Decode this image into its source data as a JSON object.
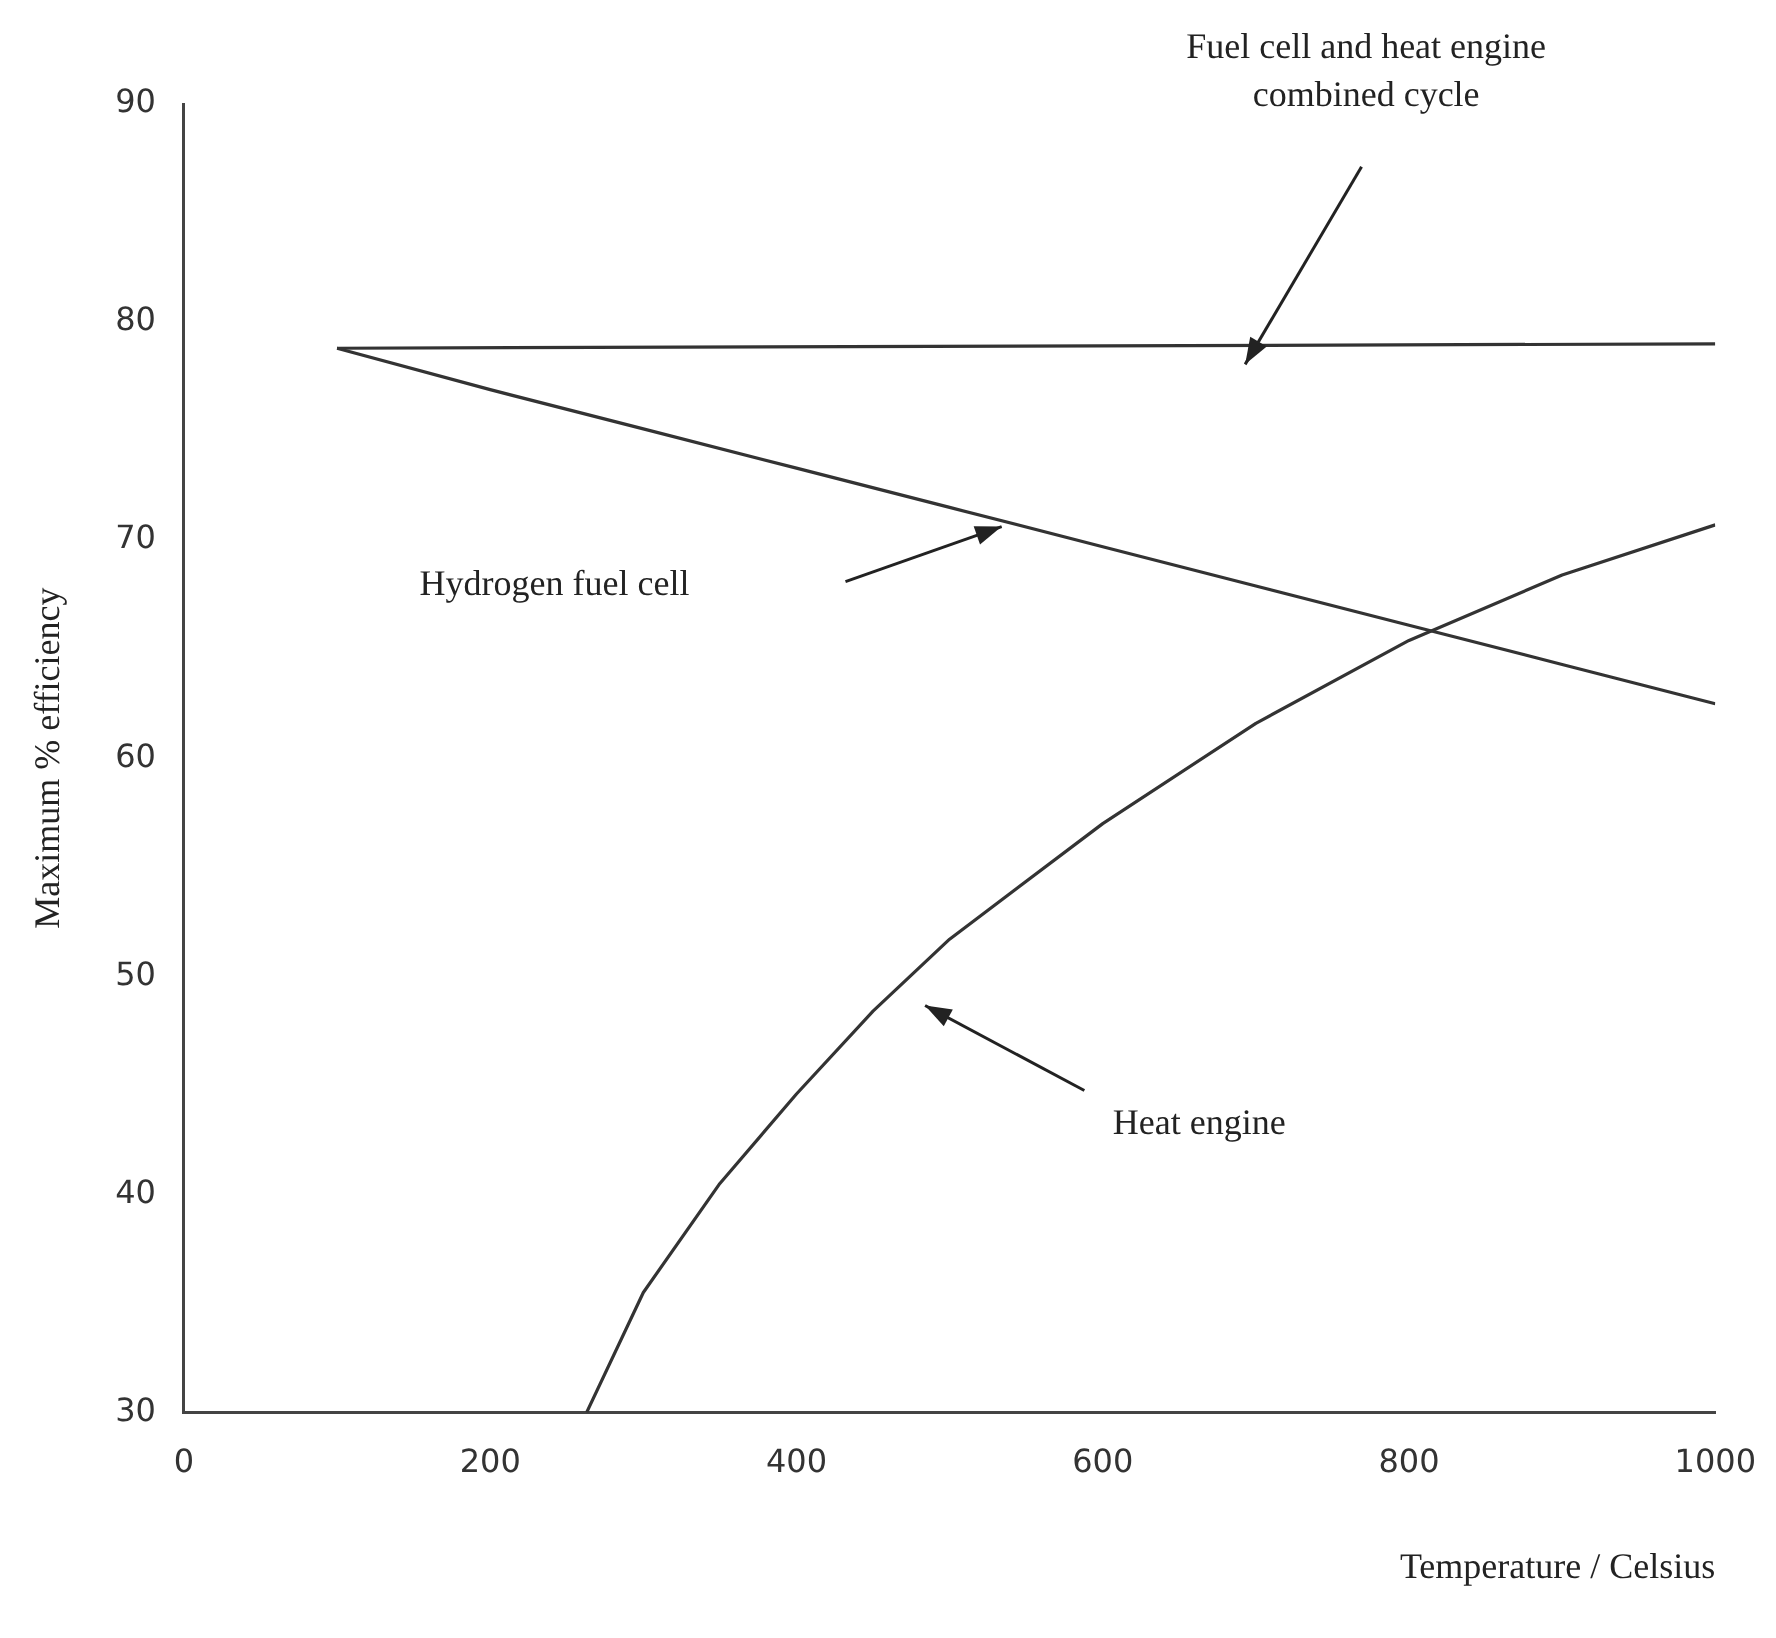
{
  "chart_data": {
    "type": "line",
    "xlabel": "Temperature / Celsius",
    "ylabel": "Maximum % efficiency",
    "xlim": [
      0,
      1000
    ],
    "xticks": [
      0,
      200,
      400,
      600,
      800,
      1000
    ],
    "ylim": [
      30,
      90
    ],
    "yticks": [
      30,
      40,
      50,
      60,
      70,
      80,
      90
    ],
    "grid": false,
    "legend": false,
    "marker": "none",
    "line_style": "solid",
    "series": [
      {
        "color": "#333333",
        "x": [
          100,
          1000
        ],
        "values": [
          78.8,
          79.0
        ]
      },
      {
        "color": "#333333",
        "x": [
          100,
          200,
          300,
          400,
          500,
          600,
          700,
          800,
          900,
          1000
        ],
        "values": [
          78.8,
          76.9,
          75.1,
          73.3,
          71.5,
          69.7,
          67.9,
          66.1,
          64.3,
          62.5
        ]
      },
      {
        "color": "#333333",
        "x": [
          263,
          300,
          350,
          400,
          450,
          500,
          600,
          700,
          800,
          900,
          1000
        ],
        "values": [
          30,
          35.5,
          40.5,
          44.6,
          48.4,
          51.7,
          57,
          61.6,
          65.4,
          68.4,
          70.7
        ]
      }
    ],
    "annotations": [
      "Fuel cell and heat engine\ncombined cycle",
      "Hydrogen fuel cell",
      "Heat engine"
    ]
  }
}
